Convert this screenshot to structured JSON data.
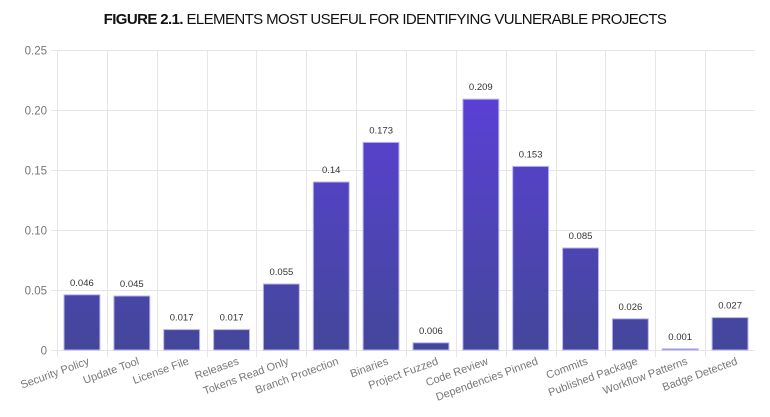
{
  "chart_data": {
    "type": "bar",
    "title_prefix": "FIGURE 2.1.",
    "title": "ELEMENTS MOST USEFUL FOR IDENTIFYING VULNERABLE PROJECTS",
    "xlabel": "",
    "ylabel": "",
    "categories": [
      "Security Policy",
      "Update Tool",
      "License File",
      "Releases",
      "Tokens Read Only",
      "Branch Protection",
      "Binaries",
      "Project Fuzzed",
      "Code Review",
      "Dependencies Pinned",
      "Commits",
      "Published Package",
      "Workflow Patterns",
      "Badge Detected"
    ],
    "values": [
      0.046,
      0.045,
      0.017,
      0.017,
      0.055,
      0.14,
      0.173,
      0.006,
      0.209,
      0.153,
      0.085,
      0.026,
      0.001,
      0.027
    ],
    "data_labels": [
      "0.046",
      "0.045",
      "0.017",
      "0.017",
      "0.055",
      "0.14",
      "0.173",
      "0.006",
      "0.209",
      "0.153",
      "0.085",
      "0.026",
      "0.001",
      "0.027"
    ],
    "ylim": [
      0,
      0.25
    ],
    "yticks": [
      0,
      0.05,
      0.1,
      0.15,
      0.2,
      0.25
    ],
    "ytick_labels": [
      "0",
      "0.05",
      "0.10",
      "0.15",
      "0.20",
      "0.25"
    ],
    "grid": true,
    "legend": "none",
    "colors": {
      "bar_top": "#5f3fe0",
      "bar_bottom": "#43479a",
      "bar_border": "#b8b4f0",
      "grid": "#e6e6e6"
    }
  }
}
